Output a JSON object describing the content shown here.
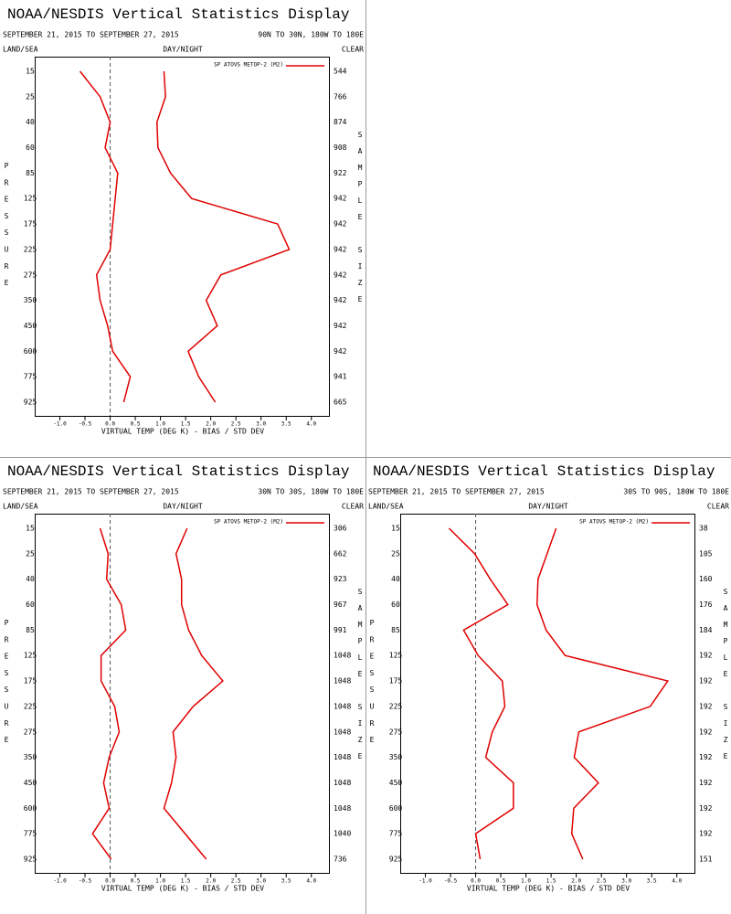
{
  "chart_data": [
    {
      "type": "line",
      "title": "NOAA/NESDIS Vertical Statistics Display",
      "date_range": "SEPTEMBER 21, 2015 TO SEPTEMBER 27, 2015",
      "region": "90N TO 30N, 180W TO 180E",
      "land_sea_label": "LAND/SEA",
      "day_night_label": "DAY/NIGHT",
      "clear_label": "CLEAR",
      "y_label": "PRESSURE",
      "y2_label": "SAMPLE SIZE",
      "x_label": "VIRTUAL TEMP (DEG K) - BIAS / STD DEV",
      "legend_label": "SP ATOVS METOP-2 (M2)",
      "legend": "upper right",
      "categories": [
        "15",
        "25",
        "40",
        "60",
        "85",
        "125",
        "175",
        "225",
        "275",
        "350",
        "450",
        "600",
        "775",
        "925"
      ],
      "sample_sizes": [
        544,
        766,
        874,
        908,
        922,
        942,
        942,
        942,
        942,
        942,
        942,
        942,
        941,
        665
      ],
      "series": [
        {
          "color": "#e00000",
          "values": [
            -0.6,
            -0.2,
            0.0,
            -0.1,
            0.15,
            0.1,
            0.05,
            0.0,
            -0.27,
            -0.2,
            -0.05,
            0.05,
            0.4,
            0.27
          ]
        },
        {
          "color": "#e00000",
          "values": [
            1.07,
            1.1,
            0.93,
            0.95,
            1.2,
            1.62,
            3.33,
            3.56,
            2.2,
            1.91,
            2.13,
            1.55,
            1.76,
            2.09
          ]
        }
      ],
      "reference_line": 0,
      "xlim": [
        -1.5,
        4.35
      ],
      "xticks": [
        {
          "value": -1,
          "label": "-1.0"
        },
        -0.5,
        {
          "value": 0,
          "label": "0.0"
        },
        0.5,
        {
          "value": 1,
          "label": "1.0"
        },
        1.5,
        {
          "value": 2,
          "label": "2.0"
        },
        2.5,
        {
          "value": 3,
          "label": "3.0"
        },
        3.5,
        {
          "value": 4,
          "label": "4.0"
        }
      ]
    },
    {
      "type": "line",
      "title": "NOAA/NESDIS Vertical Statistics Display",
      "date_range": "SEPTEMBER 21, 2015 TO SEPTEMBER 27, 2015",
      "region": "30N TO 30S, 180W TO 180E",
      "land_sea_label": "LAND/SEA",
      "day_night_label": "DAY/NIGHT",
      "clear_label": "CLEAR",
      "y_label": "PRESSURE",
      "y2_label": "SAMPLE SIZE",
      "x_label": "VIRTUAL TEMP (DEG K) - BIAS / STD DEV",
      "legend_label": "SP ATOVS METOP-2 (M2)",
      "legend": "upper right",
      "categories": [
        "15",
        "25",
        "40",
        "60",
        "85",
        "125",
        "175",
        "225",
        "275",
        "350",
        "450",
        "600",
        "775",
        "925"
      ],
      "sample_sizes": [
        306,
        662,
        923,
        967,
        991,
        1048,
        1048,
        1048,
        1048,
        1048,
        1048,
        1048,
        1040,
        736
      ],
      "series": [
        {
          "color": "#e00000",
          "values": [
            -0.2,
            -0.04,
            -0.07,
            0.22,
            0.31,
            -0.18,
            -0.18,
            0.09,
            0.18,
            -0.02,
            -0.13,
            -0.02,
            -0.35,
            0.02
          ]
        },
        {
          "color": "#e00000",
          "values": [
            1.53,
            1.31,
            1.42,
            1.42,
            1.56,
            1.82,
            2.24,
            1.65,
            1.25,
            1.31,
            1.22,
            1.07,
            1.49,
            1.91
          ]
        }
      ],
      "reference_line": 0,
      "xlim": [
        -1.5,
        4.35
      ],
      "xticks": [
        {
          "value": -1,
          "label": "-1.0"
        },
        -0.5,
        {
          "value": 0,
          "label": "0.0"
        },
        0.5,
        {
          "value": 1,
          "label": "1.0"
        },
        1.5,
        {
          "value": 2,
          "label": "2.0"
        },
        2.5,
        {
          "value": 3,
          "label": "3.0"
        },
        3.5,
        {
          "value": 4,
          "label": "4.0"
        }
      ]
    },
    {
      "type": "line",
      "title": "NOAA/NESDIS Vertical Statistics Display",
      "date_range": "SEPTEMBER 21, 2015 TO SEPTEMBER 27, 2015",
      "region": "30S TO 90S, 180W TO 180E",
      "land_sea_label": "LAND/SEA",
      "day_night_label": "DAY/NIGHT",
      "clear_label": "CLEAR",
      "y_label": "PRESSURE",
      "y2_label": "SAMPLE SIZE",
      "x_label": "VIRTUAL TEMP (DEG K) - BIAS / STD DEV",
      "legend_label": "SP ATOVS METOP-2 (M2)",
      "legend": "upper right",
      "categories": [
        "15",
        "25",
        "40",
        "60",
        "85",
        "125",
        "175",
        "225",
        "275",
        "350",
        "450",
        "600",
        "775",
        "925"
      ],
      "sample_sizes": [
        38,
        105,
        160,
        176,
        184,
        192,
        192,
        192,
        192,
        192,
        192,
        192,
        192,
        151
      ],
      "series": [
        {
          "color": "#e00000",
          "values": [
            -0.53,
            -0.02,
            0.29,
            0.64,
            -0.24,
            0.05,
            0.53,
            0.58,
            0.33,
            0.2,
            0.75,
            0.75,
            0.0,
            0.09
          ]
        },
        {
          "color": "#e00000",
          "values": [
            1.6,
            1.42,
            1.24,
            1.22,
            1.4,
            1.78,
            3.82,
            3.47,
            2.05,
            1.96,
            2.44,
            1.95,
            1.91,
            2.13
          ]
        }
      ],
      "reference_line": 0,
      "xlim": [
        -1.5,
        4.35
      ],
      "xticks": [
        {
          "value": -1,
          "label": "-1.0"
        },
        -0.5,
        {
          "value": 0,
          "label": "0.0"
        },
        0.5,
        {
          "value": 1,
          "label": "1.0"
        },
        1.5,
        {
          "value": 2,
          "label": "2.0"
        },
        2.5,
        {
          "value": 3,
          "label": "3.0"
        },
        3.5,
        {
          "value": 4,
          "label": "4.0"
        }
      ]
    }
  ]
}
